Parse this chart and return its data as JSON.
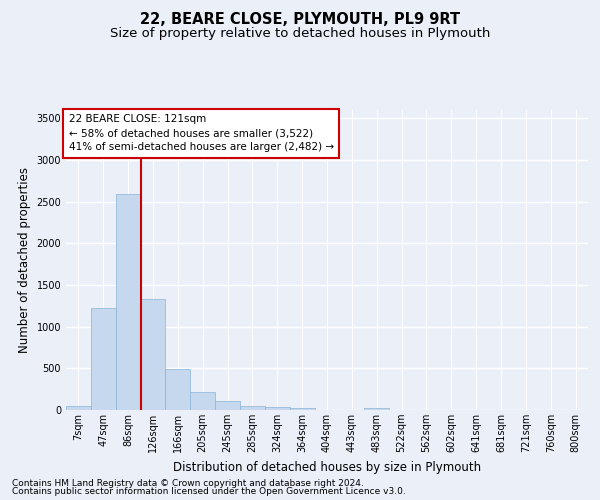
{
  "title": "22, BEARE CLOSE, PLYMOUTH, PL9 9RT",
  "subtitle": "Size of property relative to detached houses in Plymouth",
  "xlabel": "Distribution of detached houses by size in Plymouth",
  "ylabel": "Number of detached properties",
  "bar_color": "#c5d8ee",
  "bar_edge_color": "#8ab4d8",
  "background_color": "#eaeff8",
  "grid_color": "#ffffff",
  "categories": [
    "7sqm",
    "47sqm",
    "86sqm",
    "126sqm",
    "166sqm",
    "205sqm",
    "245sqm",
    "285sqm",
    "324sqm",
    "364sqm",
    "404sqm",
    "443sqm",
    "483sqm",
    "522sqm",
    "562sqm",
    "602sqm",
    "641sqm",
    "681sqm",
    "721sqm",
    "760sqm",
    "800sqm"
  ],
  "values": [
    50,
    1230,
    2590,
    1330,
    490,
    215,
    105,
    50,
    42,
    28,
    0,
    0,
    28,
    0,
    0,
    0,
    0,
    0,
    0,
    0,
    0
  ],
  "ylim": [
    0,
    3600
  ],
  "yticks": [
    0,
    500,
    1000,
    1500,
    2000,
    2500,
    3000,
    3500
  ],
  "vline_color": "#cc0000",
  "vline_x_index": 2.5,
  "property_line_label": "22 BEARE CLOSE: 121sqm",
  "annotation_line1": "← 58% of detached houses are smaller (3,522)",
  "annotation_line2": "41% of semi-detached houses are larger (2,482) →",
  "annotation_box_color": "#ffffff",
  "annotation_box_edge": "#cc0000",
  "footer_line1": "Contains HM Land Registry data © Crown copyright and database right 2024.",
  "footer_line2": "Contains public sector information licensed under the Open Government Licence v3.0.",
  "title_fontsize": 10.5,
  "subtitle_fontsize": 9.5,
  "axis_label_fontsize": 8.5,
  "tick_fontsize": 7,
  "annotation_fontsize": 7.5,
  "footer_fontsize": 6.5
}
